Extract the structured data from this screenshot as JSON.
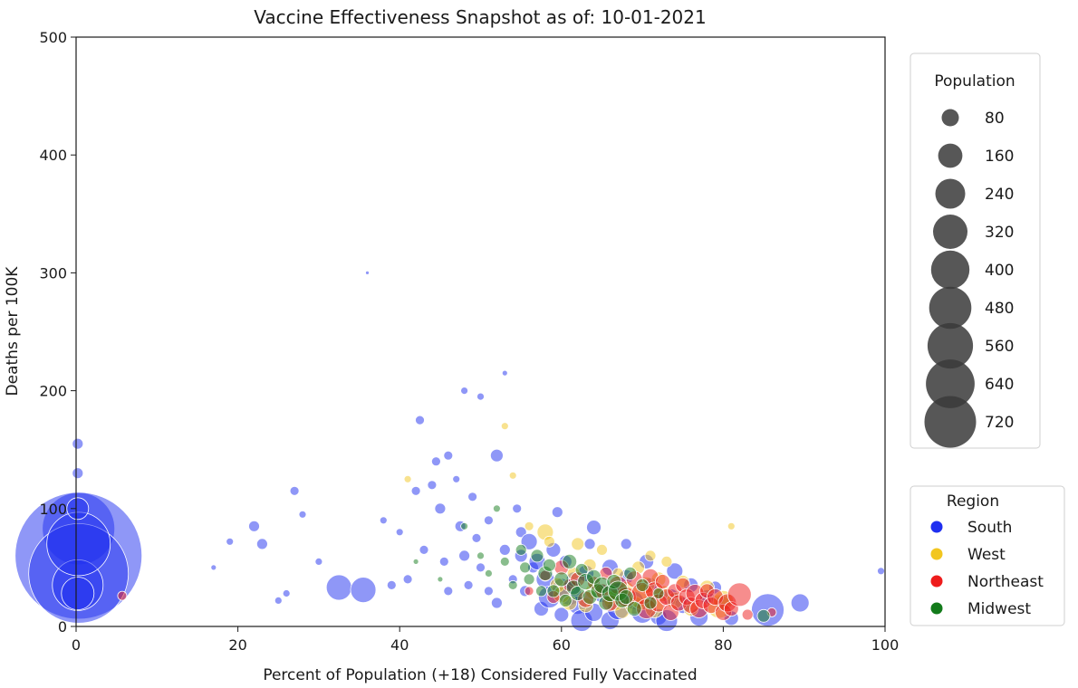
{
  "chart_data": {
    "type": "scatter",
    "title": "Vaccine Effectiveness Snapshot as of: 10-01-2021",
    "xlabel": "Percent of Population (+18) Considered Fully Vaccinated",
    "ylabel": "Deaths per 100K",
    "xlim": [
      0,
      100
    ],
    "ylim": [
      0,
      500
    ],
    "x_ticks": [
      0,
      20,
      40,
      60,
      80,
      100
    ],
    "y_ticks": [
      0,
      100,
      200,
      300,
      400,
      500
    ],
    "grid": false,
    "size_legend": {
      "title": "Population",
      "values": [
        80,
        160,
        240,
        320,
        400,
        480,
        560,
        640,
        720
      ],
      "color": "#3a3a3a"
    },
    "color_legend": {
      "title": "Region",
      "entries": [
        {
          "label": "South",
          "color": "#1f2ff0"
        },
        {
          "label": "West",
          "color": "#f2c61f"
        },
        {
          "label": "Northeast",
          "color": "#ee1c1c"
        },
        {
          "label": "Midwest",
          "color": "#137b1b"
        }
      ]
    },
    "legend_placement": "right",
    "series": [
      {
        "name": "South",
        "color": "#1f2ff0",
        "points": [
          [
            0.2,
            155,
            6
          ],
          [
            0.3,
            83,
            40
          ],
          [
            0.3,
            60,
            70
          ],
          [
            0.3,
            45,
            55
          ],
          [
            0.2,
            35,
            28
          ],
          [
            0.2,
            28,
            18
          ],
          [
            0.3,
            70,
            35
          ],
          [
            0.2,
            100,
            12
          ],
          [
            0.2,
            130,
            6
          ],
          [
            17,
            50,
            3
          ],
          [
            19,
            72,
            4
          ],
          [
            22,
            85,
            6
          ],
          [
            23,
            70,
            6
          ],
          [
            25,
            22,
            4
          ],
          [
            26,
            28,
            4
          ],
          [
            27,
            115,
            5
          ],
          [
            28,
            95,
            4
          ],
          [
            30,
            55,
            4
          ],
          [
            32.5,
            33,
            14
          ],
          [
            35.5,
            31,
            14
          ],
          [
            36,
            300,
            2
          ],
          [
            38,
            90,
            4
          ],
          [
            39,
            35,
            5
          ],
          [
            40,
            80,
            4
          ],
          [
            41,
            40,
            5
          ],
          [
            42,
            115,
            5
          ],
          [
            42.5,
            175,
            5
          ],
          [
            43,
            65,
            5
          ],
          [
            44,
            120,
            5
          ],
          [
            44.5,
            140,
            5
          ],
          [
            45,
            100,
            6
          ],
          [
            45.5,
            55,
            5
          ],
          [
            46,
            145,
            5
          ],
          [
            46,
            30,
            5
          ],
          [
            47,
            125,
            4
          ],
          [
            47.5,
            85,
            6
          ],
          [
            48,
            60,
            6
          ],
          [
            48,
            200,
            4
          ],
          [
            48.5,
            35,
            5
          ],
          [
            49,
            110,
            5
          ],
          [
            49.5,
            75,
            5
          ],
          [
            50,
            195,
            4
          ],
          [
            50,
            50,
            5
          ],
          [
            51,
            30,
            5
          ],
          [
            51,
            90,
            5
          ],
          [
            52,
            145,
            7
          ],
          [
            52,
            20,
            6
          ],
          [
            53,
            215,
            3
          ],
          [
            53,
            65,
            6
          ],
          [
            54,
            40,
            5
          ],
          [
            54.5,
            100,
            5
          ],
          [
            55,
            60,
            7
          ],
          [
            55,
            80,
            6
          ],
          [
            55.5,
            30,
            6
          ],
          [
            56,
            72,
            9
          ],
          [
            56.5,
            50,
            6
          ],
          [
            57,
            55,
            9
          ],
          [
            57.5,
            15,
            8
          ],
          [
            58,
            40,
            10
          ],
          [
            58.5,
            25,
            12
          ],
          [
            59,
            65,
            8
          ],
          [
            59.5,
            97,
            6
          ],
          [
            60,
            10,
            8
          ],
          [
            60,
            33,
            10
          ],
          [
            60.5,
            55,
            7
          ],
          [
            61,
            28,
            13
          ],
          [
            61.5,
            40,
            8
          ],
          [
            62,
            18,
            10
          ],
          [
            62.5,
            5,
            12
          ],
          [
            63,
            45,
            9
          ],
          [
            63.5,
            70,
            6
          ],
          [
            64,
            12,
            10
          ],
          [
            64,
            84,
            8
          ],
          [
            65,
            28,
            10
          ],
          [
            66,
            5,
            10
          ],
          [
            66,
            50,
            9
          ],
          [
            67,
            30,
            9
          ],
          [
            67,
            15,
            12
          ],
          [
            68,
            70,
            6
          ],
          [
            68,
            42,
            8
          ],
          [
            69,
            22,
            10
          ],
          [
            70,
            12,
            12
          ],
          [
            70.5,
            55,
            8
          ],
          [
            71,
            35,
            8
          ],
          [
            72,
            8,
            9
          ],
          [
            73,
            5,
            12
          ],
          [
            73.5,
            25,
            9
          ],
          [
            74,
            47,
            9
          ],
          [
            75,
            18,
            9
          ],
          [
            76,
            35,
            8
          ],
          [
            77,
            8,
            10
          ],
          [
            78,
            25,
            8
          ],
          [
            79,
            33,
            7
          ],
          [
            80,
            20,
            9
          ],
          [
            81,
            7,
            8
          ],
          [
            85.5,
            14,
            18
          ],
          [
            89.5,
            20,
            10
          ],
          [
            99.5,
            47,
            4
          ]
        ]
      },
      {
        "name": "West",
        "color": "#f2c61f",
        "points": [
          [
            41,
            125,
            4
          ],
          [
            53,
            170,
            4
          ],
          [
            54,
            128,
            4
          ],
          [
            56,
            85,
            5
          ],
          [
            58,
            80,
            9
          ],
          [
            58.5,
            72,
            6
          ],
          [
            59.5,
            35,
            8
          ],
          [
            60,
            27,
            9
          ],
          [
            61,
            20,
            8
          ],
          [
            61.5,
            45,
            7
          ],
          [
            62,
            70,
            7
          ],
          [
            63,
            18,
            8
          ],
          [
            63.5,
            52,
            7
          ],
          [
            64,
            30,
            9
          ],
          [
            65,
            65,
            6
          ],
          [
            66,
            25,
            8
          ],
          [
            66.5,
            22,
            11
          ],
          [
            67,
            45,
            6
          ],
          [
            67.5,
            13,
            8
          ],
          [
            68,
            32,
            8
          ],
          [
            69,
            18,
            10
          ],
          [
            69.5,
            50,
            7
          ],
          [
            70,
            25,
            14
          ],
          [
            70.5,
            35,
            9
          ],
          [
            71,
            60,
            6
          ],
          [
            71.5,
            15,
            10
          ],
          [
            72,
            40,
            8
          ],
          [
            72.5,
            28,
            9
          ],
          [
            73,
            55,
            6
          ],
          [
            74,
            22,
            9
          ],
          [
            75,
            38,
            7
          ],
          [
            76,
            15,
            8
          ],
          [
            78,
            33,
            8
          ],
          [
            79.5,
            17,
            13
          ],
          [
            80,
            22,
            11
          ],
          [
            81,
            85,
            4
          ]
        ]
      },
      {
        "name": "Northeast",
        "color": "#ee1c1c",
        "points": [
          [
            5.7,
            26,
            5
          ],
          [
            56,
            30,
            5
          ],
          [
            58,
            43,
            6
          ],
          [
            59,
            25,
            7
          ],
          [
            60,
            50,
            8
          ],
          [
            61,
            35,
            7
          ],
          [
            62,
            40,
            8
          ],
          [
            63,
            23,
            9
          ],
          [
            64,
            37,
            7
          ],
          [
            65,
            30,
            8
          ],
          [
            65.5,
            45,
            7
          ],
          [
            66,
            20,
            9
          ],
          [
            67,
            35,
            10
          ],
          [
            68,
            25,
            11
          ],
          [
            69,
            40,
            9
          ],
          [
            70,
            28,
            12
          ],
          [
            70.5,
            15,
            11
          ],
          [
            71,
            42,
            9
          ],
          [
            71.5,
            30,
            10
          ],
          [
            72,
            20,
            10
          ],
          [
            72.5,
            38,
            8
          ],
          [
            73,
            25,
            9
          ],
          [
            73.5,
            12,
            9
          ],
          [
            74,
            30,
            8
          ],
          [
            74.5,
            20,
            9
          ],
          [
            75,
            35,
            8
          ],
          [
            75.5,
            25,
            9
          ],
          [
            76,
            18,
            9
          ],
          [
            76.5,
            28,
            10
          ],
          [
            77,
            15,
            10
          ],
          [
            77.5,
            22,
            9
          ],
          [
            78,
            30,
            8
          ],
          [
            78.5,
            18,
            9
          ],
          [
            79,
            25,
            9
          ],
          [
            80,
            12,
            9
          ],
          [
            80.5,
            20,
            10
          ],
          [
            81,
            15,
            8
          ],
          [
            82,
            27,
            13
          ],
          [
            83,
            10,
            6
          ],
          [
            86,
            12,
            5
          ]
        ]
      },
      {
        "name": "Midwest",
        "color": "#137b1b",
        "points": [
          [
            42,
            55,
            3
          ],
          [
            45,
            40,
            3
          ],
          [
            48,
            85,
            4
          ],
          [
            50,
            60,
            4
          ],
          [
            51,
            45,
            4
          ],
          [
            52,
            100,
            4
          ],
          [
            53,
            55,
            5
          ],
          [
            54,
            35,
            5
          ],
          [
            55,
            65,
            6
          ],
          [
            55.5,
            50,
            6
          ],
          [
            56,
            40,
            6
          ],
          [
            57,
            60,
            7
          ],
          [
            57.5,
            30,
            6
          ],
          [
            58,
            45,
            8
          ],
          [
            58.5,
            52,
            7
          ],
          [
            59,
            30,
            7
          ],
          [
            60,
            40,
            8
          ],
          [
            60.5,
            22,
            7
          ],
          [
            61,
            55,
            8
          ],
          [
            61.5,
            33,
            8
          ],
          [
            62,
            28,
            8
          ],
          [
            62.5,
            48,
            7
          ],
          [
            63,
            38,
            9
          ],
          [
            63.5,
            25,
            8
          ],
          [
            64,
            42,
            8
          ],
          [
            64.5,
            30,
            8
          ],
          [
            65,
            35,
            9
          ],
          [
            65.5,
            20,
            8
          ],
          [
            66,
            28,
            9
          ],
          [
            66.5,
            38,
            8
          ],
          [
            67,
            30,
            11
          ],
          [
            67.5,
            22,
            8
          ],
          [
            68,
            25,
            8
          ],
          [
            68.5,
            45,
            7
          ],
          [
            69,
            15,
            8
          ],
          [
            70,
            35,
            7
          ],
          [
            71,
            20,
            7
          ],
          [
            72,
            28,
            6
          ],
          [
            85,
            9,
            7
          ]
        ]
      }
    ]
  }
}
